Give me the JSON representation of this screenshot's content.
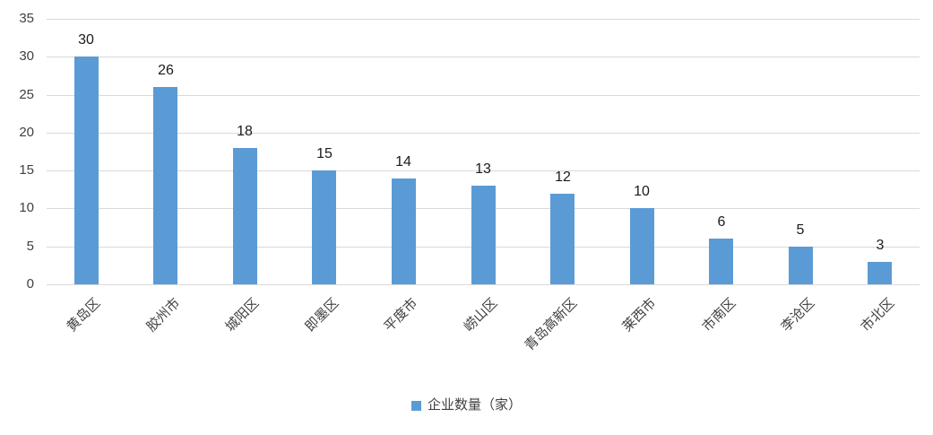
{
  "chart_data": {
    "type": "bar",
    "title": "",
    "xlabel": "",
    "ylabel": "",
    "categories": [
      "黄岛区",
      "胶州市",
      "城阳区",
      "即墨区",
      "平度市",
      "崂山区",
      "青岛高新区",
      "莱西市",
      "市南区",
      "李沧区",
      "市北区"
    ],
    "values": [
      30,
      26,
      18,
      15,
      14,
      13,
      12,
      10,
      6,
      5,
      3
    ],
    "data_labels": [
      30,
      26,
      18,
      15,
      14,
      13,
      12,
      10,
      6,
      5,
      3
    ],
    "ylim": [
      0,
      35
    ],
    "yticks": [
      0,
      5,
      10,
      15,
      20,
      25,
      30,
      35
    ],
    "grid": true,
    "legend": {
      "label": "企业数量（家）",
      "position": "bottom"
    },
    "colors": {
      "bar": "#5b9bd5",
      "gridline": "#d9d9d9",
      "axis_text": "#404040",
      "value_label_text": "#1a1a1a",
      "background": "#ffffff"
    }
  }
}
